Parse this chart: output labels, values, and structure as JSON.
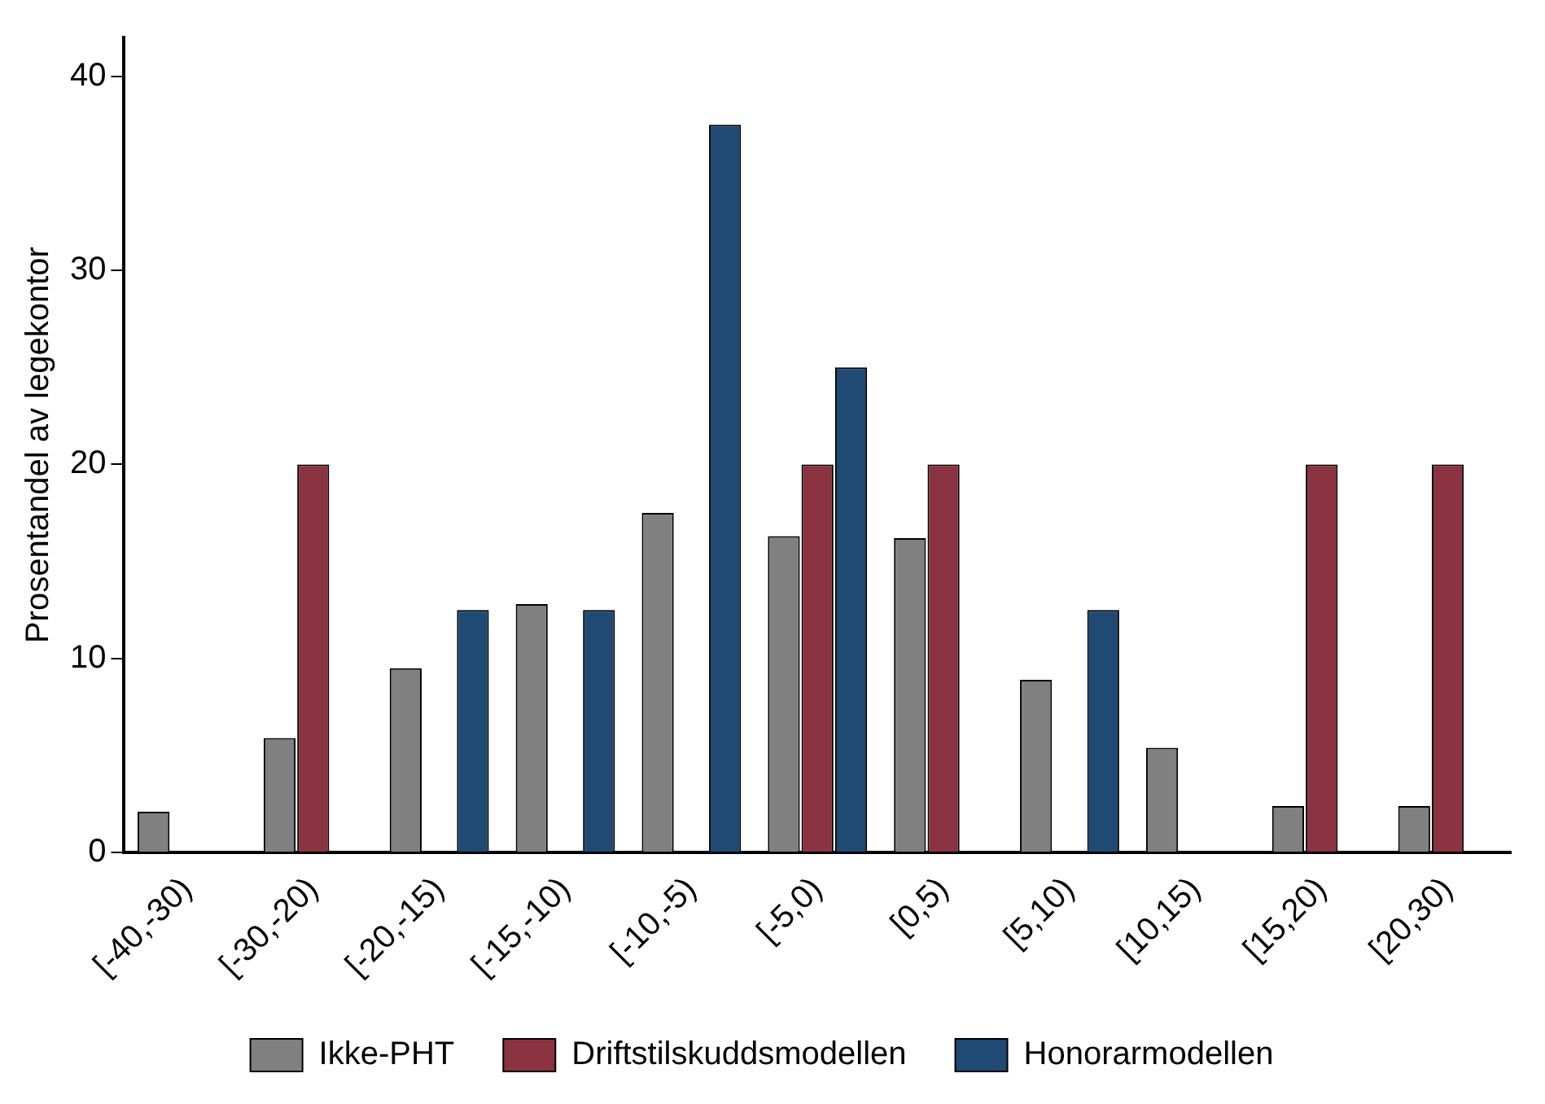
{
  "chart_data": {
    "type": "bar",
    "ylabel": "Prosentandel av legekontor",
    "categories": [
      "[-40,-30)",
      "[-30,-20)",
      "[-20,-15)",
      "[-15,-10)",
      "[-10,-5)",
      "[-5,0)",
      "[0,5)",
      "[5,10)",
      "[10,15)",
      "[15,20)",
      "[20,30)"
    ],
    "series": [
      {
        "name": "Ikke-PHT",
        "color": "#808080",
        "values": [
          2.1,
          5.9,
          9.5,
          12.8,
          17.5,
          16.3,
          16.2,
          8.9,
          5.4,
          2.4,
          2.4
        ]
      },
      {
        "name": "Driftstilskuddsmodellen",
        "color": "#8b3340",
        "values": [
          0,
          20,
          0,
          0,
          0,
          20,
          20,
          0,
          0,
          20,
          20
        ]
      },
      {
        "name": "Honorarmodellen",
        "color": "#1f4a73",
        "values": [
          0,
          0,
          12.5,
          12.5,
          37.5,
          25,
          0,
          12.5,
          0,
          0,
          0
        ]
      }
    ],
    "ylim": [
      0,
      42
    ],
    "yticks": [
      0,
      10,
      20,
      30,
      40
    ],
    "grid": false,
    "legend": "bottom"
  }
}
